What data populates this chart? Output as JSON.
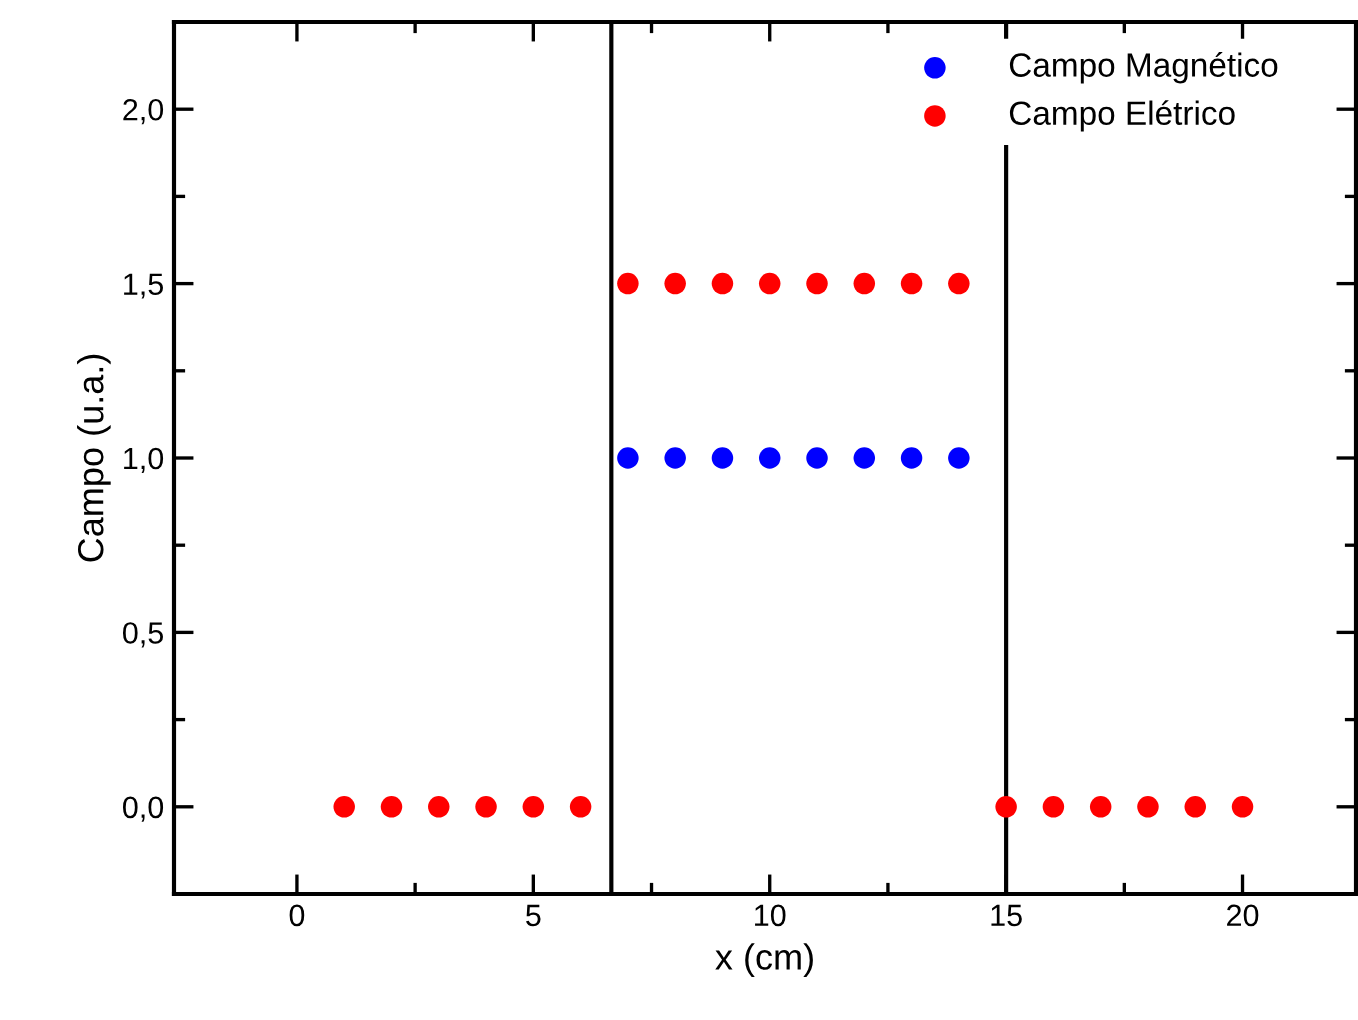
{
  "chart_data": {
    "type": "scatter",
    "xlabel": "x (cm)",
    "ylabel": "Campo (u.a.)",
    "x": [
      1,
      2,
      3,
      4,
      5,
      6,
      7,
      8,
      9,
      10,
      11,
      12,
      13,
      14,
      15,
      16,
      17,
      18,
      19,
      20
    ],
    "series": [
      {
        "name": "Campo Magnético",
        "color": "#0000ff",
        "values": [
          null,
          null,
          null,
          null,
          null,
          null,
          1,
          1,
          1,
          1,
          1,
          1,
          1,
          1,
          null,
          null,
          null,
          null,
          null,
          null
        ]
      },
      {
        "name": "Campo Elétrico",
        "color": "#ff0000",
        "values": [
          0,
          0,
          0,
          0,
          0,
          0,
          1.5,
          1.5,
          1.5,
          1.5,
          1.5,
          1.5,
          1.5,
          1.5,
          0,
          0,
          0,
          0,
          0,
          0
        ]
      }
    ],
    "ref_lines": [
      {
        "axis": "x",
        "value": 6.65,
        "color": "#000000"
      },
      {
        "axis": "x",
        "value": 15,
        "color": "#000000"
      }
    ],
    "xlim": [
      -2.6,
      22.4
    ],
    "ylim": [
      -0.25,
      2.25
    ],
    "xticks": [
      0,
      {
        "value": 2.5,
        "label": null
      },
      5,
      {
        "value": 7.5,
        "label": null
      },
      10,
      {
        "value": 12.5,
        "label": null
      },
      15,
      {
        "value": 17.5,
        "label": null
      },
      20
    ],
    "yticks": [
      {
        "value": 0,
        "label": "0,0"
      },
      {
        "value": 0.25,
        "label": null
      },
      {
        "value": 0.5,
        "label": "0,5"
      },
      {
        "value": 0.75,
        "label": null
      },
      {
        "value": 1,
        "label": "1,0"
      },
      {
        "value": 1.25,
        "label": null
      },
      {
        "value": 1.5,
        "label": "1,5"
      },
      {
        "value": 1.75,
        "label": null
      },
      {
        "value": 2,
        "label": "2,0"
      }
    ],
    "marker": "circle",
    "grid": false,
    "legend": "top right"
  }
}
